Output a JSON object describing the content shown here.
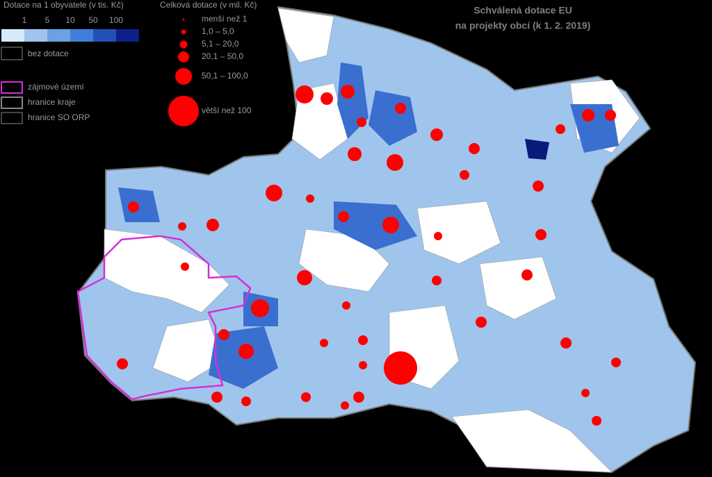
{
  "legend": {
    "per_capita_title": "Dotace na 1 obyvatele (v tis. Kč)",
    "per_capita_ticks": [
      "1",
      "5",
      "10",
      "50",
      "100"
    ],
    "no_subsidy": "bez dotace",
    "total_title": "Celková dotace (v mil. Kč)",
    "total_classes": [
      "menší než 1",
      "1,0 – 5,0",
      "5,1 – 20,0",
      "20,1 – 50,0",
      "50,1 – 100,0",
      "větší než 100"
    ],
    "lines": [
      "zájmové území",
      "hranice kraje",
      "hranice SO ORP"
    ]
  },
  "title": [
    "Schválená dotace EU",
    "na projekty obcí (k 1. 2. 2019)"
  ]
}
